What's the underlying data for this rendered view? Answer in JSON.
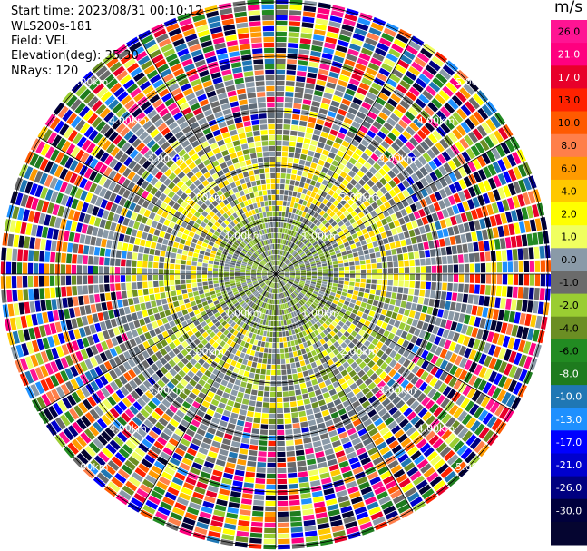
{
  "header": {
    "start_time": "Start time: 2023/08/31 00:10:12",
    "instrument": "WLS200s-181",
    "field": "Field: VEL",
    "elevation": "Elevation(deg): 35.30",
    "nrays": "NRays: 120"
  },
  "chart_data": {
    "type": "heatmap",
    "projection": "polar (PPI scan)",
    "field": "VEL",
    "unit": "m/s",
    "n_rays": 120,
    "elevation_deg": 35.3,
    "range_rings": [
      "1.00km",
      "2.00km",
      "3.00km",
      "4.00km",
      "5.00km"
    ],
    "colorbar": {
      "label": "m/s",
      "ticks": [
        "26.0",
        "21.0",
        "17.0",
        "13.0",
        "10.0",
        "8.0",
        "6.0",
        "4.0",
        "2.0",
        "1.0",
        "0.0",
        "-1.0",
        "-2.0",
        "-4.0",
        "-6.0",
        "-8.0",
        "-10.0",
        "-13.0",
        "-17.0",
        "-21.0",
        "-26.0",
        "-30.0"
      ],
      "colors": [
        "#ff1493",
        "#ff007f",
        "#e8002a",
        "#ff2200",
        "#ff5a00",
        "#ff7f4a",
        "#ff9a00",
        "#ffc800",
        "#ffff00",
        "#f0ff60",
        "#8a9aa8",
        "#6b6b6b",
        "#9acd32",
        "#6b8e23",
        "#228b22",
        "#1e7b1e",
        "#1f77b4",
        "#1e90ff",
        "#0000ff",
        "#0000cd",
        "#000080",
        "#00003c",
        "#050530"
      ]
    }
  }
}
